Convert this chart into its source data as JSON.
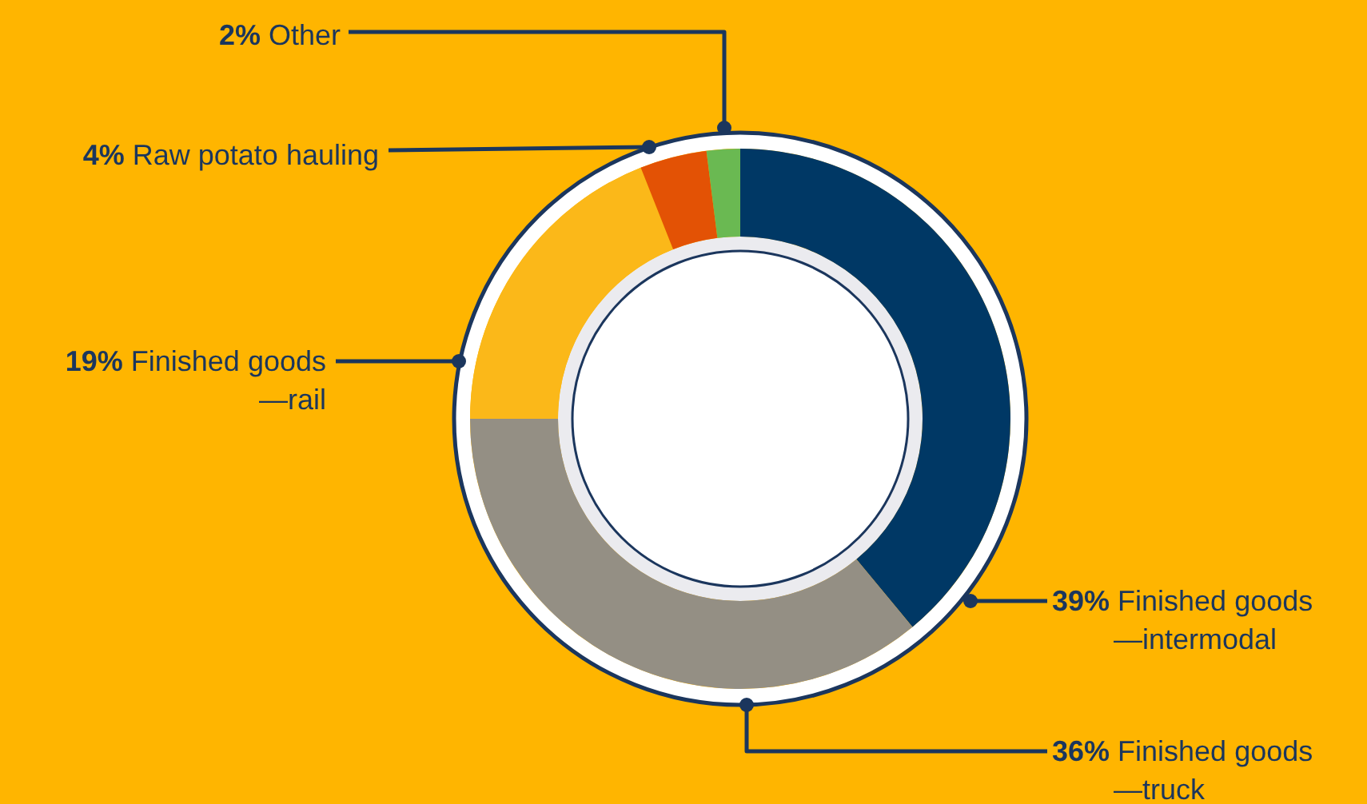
{
  "chart_data": {
    "type": "donut",
    "categories": [
      "Finished goods\n—intermodal",
      "Finished goods\n—truck",
      "Finished goods\n—rail",
      "Raw potato hauling",
      "Other"
    ],
    "values": [
      39,
      36,
      19,
      4,
      2
    ],
    "value_labels": [
      "39%",
      "36%",
      "19%",
      "4%",
      "2%"
    ],
    "colors": [
      "#003865",
      "#948f84",
      "#fbb819",
      "#e35205",
      "#6ab952"
    ]
  }
}
